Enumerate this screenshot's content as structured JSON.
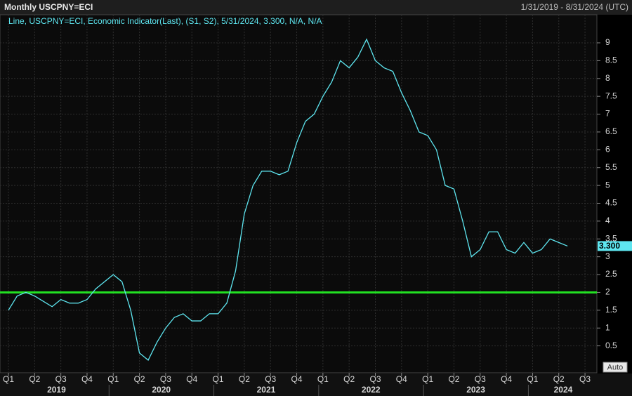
{
  "chart_data": {
    "type": "line",
    "title": "Monthly USCPNY=ECI",
    "date_range": "1/31/2019 - 8/31/2024 (UTC)",
    "legend_text": "Line, USCPNY=ECI, Economic Indicator(Last), (S1, S2), 5/31/2024, 3.300, N/A, N/A",
    "auto_button": "Auto",
    "x": [
      "2019-01",
      "2019-02",
      "2019-03",
      "2019-04",
      "2019-05",
      "2019-06",
      "2019-07",
      "2019-08",
      "2019-09",
      "2019-10",
      "2019-11",
      "2019-12",
      "2020-01",
      "2020-02",
      "2020-03",
      "2020-04",
      "2020-05",
      "2020-06",
      "2020-07",
      "2020-08",
      "2020-09",
      "2020-10",
      "2020-11",
      "2020-12",
      "2021-01",
      "2021-02",
      "2021-03",
      "2021-04",
      "2021-05",
      "2021-06",
      "2021-07",
      "2021-08",
      "2021-09",
      "2021-10",
      "2021-11",
      "2021-12",
      "2022-01",
      "2022-02",
      "2022-03",
      "2022-04",
      "2022-05",
      "2022-06",
      "2022-07",
      "2022-08",
      "2022-09",
      "2022-10",
      "2022-11",
      "2022-12",
      "2023-01",
      "2023-02",
      "2023-03",
      "2023-04",
      "2023-05",
      "2023-06",
      "2023-07",
      "2023-08",
      "2023-09",
      "2023-10",
      "2023-11",
      "2023-12",
      "2024-01",
      "2024-02",
      "2024-03",
      "2024-04",
      "2024-05"
    ],
    "series": [
      {
        "color": "#5ee6f0",
        "values": [
          1.5,
          1.9,
          2.0,
          1.9,
          1.75,
          1.6,
          1.8,
          1.7,
          1.7,
          1.8,
          2.1,
          2.3,
          2.5,
          2.3,
          1.5,
          0.3,
          0.1,
          0.6,
          1.0,
          1.3,
          1.4,
          1.2,
          1.2,
          1.4,
          1.4,
          1.7,
          2.6,
          4.2,
          5.0,
          5.4,
          5.4,
          5.3,
          5.4,
          6.2,
          6.8,
          7.0,
          7.5,
          7.9,
          8.5,
          8.3,
          8.6,
          9.1,
          8.5,
          8.3,
          8.2,
          7.6,
          7.1,
          6.5,
          6.4,
          6.0,
          5.0,
          4.9,
          4.0,
          3.0,
          3.2,
          3.7,
          3.7,
          3.2,
          3.1,
          3.4,
          3.1,
          3.2,
          3.5,
          3.4,
          3.3
        ]
      }
    ],
    "current_value": {
      "value": 3.3,
      "label": "3.300"
    },
    "reference_line": {
      "value": 2,
      "color": "#22e022"
    },
    "xlim": [
      "2019-01",
      "2024-08"
    ],
    "ylim": [
      0,
      9.65
    ],
    "yticks": [
      0.5,
      1,
      1.5,
      2,
      2.5,
      3,
      3.5,
      4,
      4.5,
      5,
      5.5,
      6,
      6.5,
      7,
      7.5,
      8,
      8.5,
      9
    ],
    "xticks": [
      {
        "value": "2019-01",
        "label": "Q1"
      },
      {
        "value": "2019-04",
        "label": "Q2"
      },
      {
        "value": "2019-07",
        "label": "Q3"
      },
      {
        "value": "2019-10",
        "label": "Q4"
      },
      {
        "value": "2020-01",
        "label": "Q1"
      },
      {
        "value": "2020-04",
        "label": "Q2"
      },
      {
        "value": "2020-07",
        "label": "Q3"
      },
      {
        "value": "2020-10",
        "label": "Q4"
      },
      {
        "value": "2021-01",
        "label": "Q1"
      },
      {
        "value": "2021-04",
        "label": "Q2"
      },
      {
        "value": "2021-07",
        "label": "Q3"
      },
      {
        "value": "2021-10",
        "label": "Q4"
      },
      {
        "value": "2022-01",
        "label": "Q1"
      },
      {
        "value": "2022-04",
        "label": "Q2"
      },
      {
        "value": "2022-07",
        "label": "Q3"
      },
      {
        "value": "2022-10",
        "label": "Q4"
      },
      {
        "value": "2023-01",
        "label": "Q1"
      },
      {
        "value": "2023-04",
        "label": "Q2"
      },
      {
        "value": "2023-07",
        "label": "Q3"
      },
      {
        "value": "2023-10",
        "label": "Q4"
      },
      {
        "value": "2024-01",
        "label": "Q1"
      },
      {
        "value": "2024-04",
        "label": "Q2"
      },
      {
        "value": "2024-07",
        "label": "Q3"
      }
    ],
    "years": [
      "2019",
      "2020",
      "2021",
      "2022",
      "2023",
      "2024"
    ],
    "grid": true
  }
}
